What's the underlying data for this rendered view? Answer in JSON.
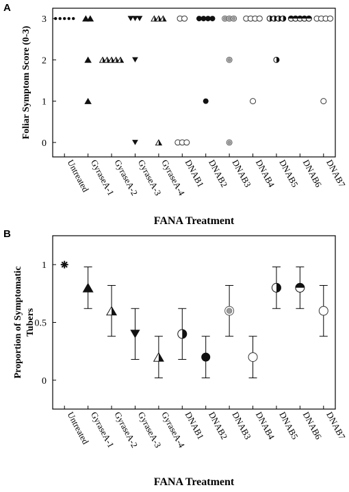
{
  "panels": {
    "a": "A",
    "b": "B"
  },
  "chart_data": [
    {
      "type": "scatter",
      "panel": "A",
      "title": "",
      "xlabel": "FANA Treatment",
      "ylabel": "Foliar Symptom Score (0-3)",
      "ylim": [
        -0.35,
        3.25
      ],
      "yticks": [
        0,
        1,
        2,
        3
      ],
      "legend": "none",
      "grid": false,
      "categories": [
        "Untreated",
        "GyraseA-1",
        "GyraseA-2",
        "GyraseA-3",
        "GyraseA-4",
        "DNAB1",
        "DNAB2",
        "DNAB3",
        "DNAB4",
        "DNAB5",
        "DNAB6",
        "DNAB7"
      ],
      "marker_styles": [
        "plus-star",
        "triangle-up-filled",
        "triangle-up-half",
        "triangle-down-filled",
        "triangle-up-half",
        "circle-open",
        "circle-filled",
        "circle-gray",
        "circle-open",
        "circle-half",
        "circle-half-horizontal",
        "circle-open"
      ],
      "series": [
        {
          "category": "Untreated",
          "scores": [
            3,
            3,
            3,
            3,
            3
          ]
        },
        {
          "category": "GyraseA-1",
          "scores": [
            3,
            3,
            2,
            1
          ]
        },
        {
          "category": "GyraseA-2",
          "scores": [
            2,
            2,
            2,
            2,
            2
          ]
        },
        {
          "category": "GyraseA-3",
          "scores": [
            3,
            3,
            3,
            2,
            0
          ]
        },
        {
          "category": "GyraseA-4",
          "scores": [
            3,
            3,
            3,
            0
          ]
        },
        {
          "category": "DNAB1",
          "scores": [
            3,
            3,
            0,
            0,
            0
          ]
        },
        {
          "category": "DNAB2",
          "scores": [
            3,
            3,
            3,
            3,
            1
          ]
        },
        {
          "category": "DNAB3",
          "scores": [
            3,
            3,
            3,
            2,
            0
          ]
        },
        {
          "category": "DNAB4",
          "scores": [
            3,
            3,
            3,
            3,
            1
          ]
        },
        {
          "category": "DNAB5",
          "scores": [
            3,
            3,
            3,
            3,
            2
          ]
        },
        {
          "category": "DNAB6",
          "scores": [
            3,
            3,
            3,
            3,
            3
          ]
        },
        {
          "category": "DNAB7",
          "scores": [
            3,
            3,
            3,
            3,
            1
          ]
        }
      ]
    },
    {
      "type": "scatter",
      "panel": "B",
      "title": "",
      "xlabel": "FANA Treatment",
      "ylabel": "Proportion of Symptomatic Tubers",
      "ylim": [
        -0.25,
        1.25
      ],
      "yticks": [
        0,
        0.5,
        1
      ],
      "ytick_labels": [
        "0",
        "0.5",
        "1"
      ],
      "legend": "none",
      "grid": false,
      "categories": [
        "Untreated",
        "GyraseA-1",
        "GyraseA-2",
        "GyraseA-3",
        "GyraseA-4",
        "DNAB1",
        "DNAB2",
        "DNAB3",
        "DNAB4",
        "DNAB5",
        "DNAB6",
        "DNAB7"
      ],
      "marker_styles": [
        "star",
        "triangle-up-filled",
        "triangle-up-half",
        "triangle-down-filled",
        "triangle-up-half",
        "circle-half",
        "circle-filled",
        "circle-gray",
        "circle-open",
        "circle-half",
        "circle-half-horizontal",
        "circle-open"
      ],
      "values": [
        1.0,
        0.8,
        0.6,
        0.4,
        0.2,
        0.4,
        0.2,
        0.6,
        0.2,
        0.8,
        0.8,
        0.6
      ],
      "error_low": [
        1.0,
        0.62,
        0.38,
        0.18,
        0.02,
        0.18,
        0.02,
        0.38,
        0.02,
        0.62,
        0.62,
        0.38
      ],
      "error_high": [
        1.0,
        0.98,
        0.82,
        0.62,
        0.38,
        0.62,
        0.38,
        0.82,
        0.38,
        0.98,
        0.98,
        0.82
      ]
    }
  ]
}
